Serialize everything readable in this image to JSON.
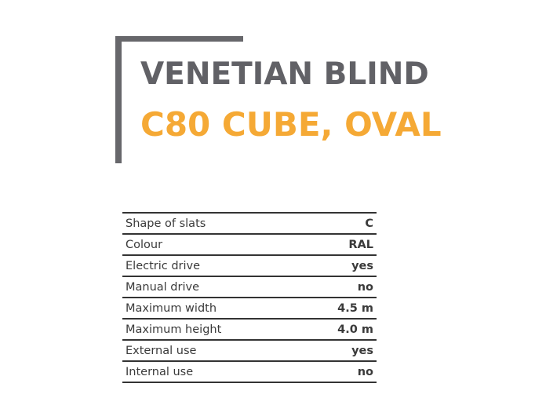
{
  "title": {
    "line1": "VENETIAN BLIND",
    "line2": "C80 CUBE, OVAL"
  },
  "colors": {
    "title_gray": "#616166",
    "title_orange": "#f5a935",
    "bracket": "#67676b"
  },
  "specs": [
    {
      "label": "Shape of slats",
      "value": "C"
    },
    {
      "label": "Colour",
      "value": "RAL"
    },
    {
      "label": "Electric drive",
      "value": "yes"
    },
    {
      "label": "Manual drive",
      "value": "no"
    },
    {
      "label": "Maximum width",
      "value": "4.5 m"
    },
    {
      "label": "Maximum height",
      "value": "4.0 m"
    },
    {
      "label": "External use",
      "value": "yes"
    },
    {
      "label": "Internal use",
      "value": "no"
    }
  ]
}
